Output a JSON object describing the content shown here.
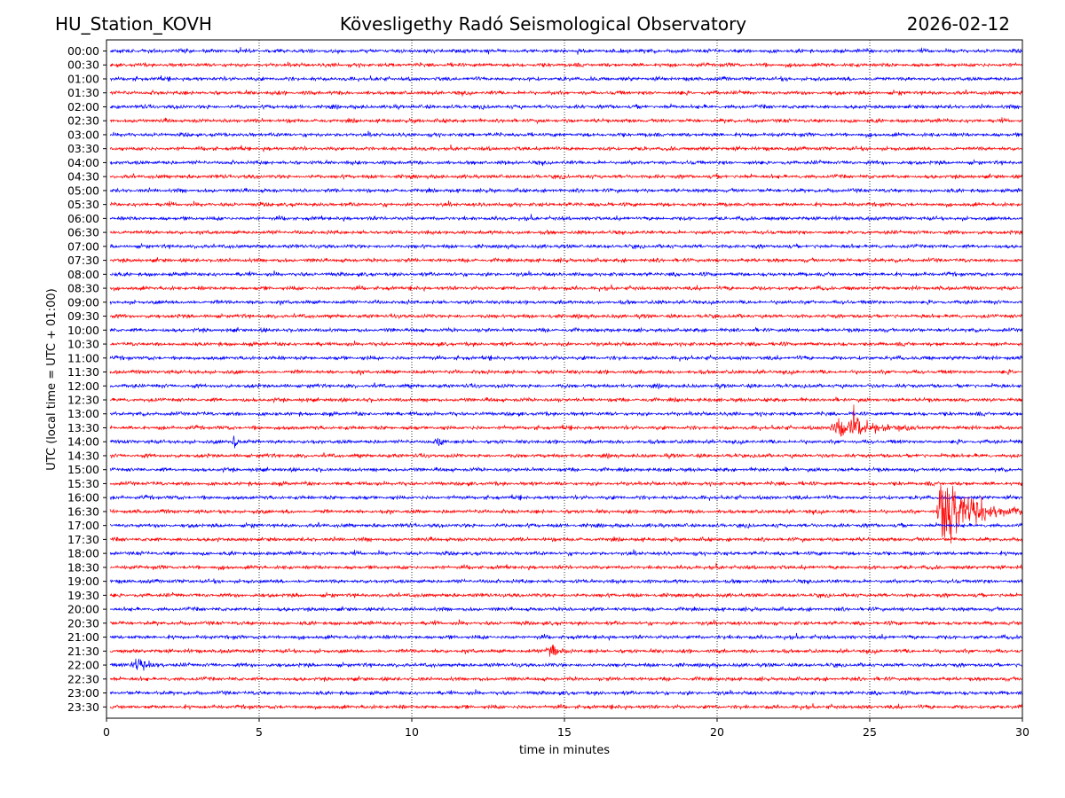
{
  "header": {
    "station": "HU_Station_KOVH",
    "observatory": "Kövesligethy Radó Seismological Observatory",
    "date": "2026-02-12"
  },
  "chart_data": {
    "type": "line",
    "subtype": "helicorder",
    "title": "Kövesligethy Radó Seismological Observatory",
    "xlabel": "time in minutes",
    "ylabel": "UTC (local time = UTC + 01:00)",
    "xlim": [
      0,
      30
    ],
    "x_ticks": [
      "0",
      "5",
      "10",
      "15",
      "20",
      "25",
      "30"
    ],
    "x_tick_values": [
      0,
      5,
      10,
      15,
      20,
      25,
      30
    ],
    "grid": "vertical dotted at x ticks",
    "trace_colors": [
      "#0000ff",
      "#ff0000"
    ],
    "y_tick_labels": [
      "00:00",
      "00:30",
      "01:00",
      "01:30",
      "02:00",
      "02:30",
      "03:00",
      "03:30",
      "04:00",
      "04:30",
      "05:00",
      "05:30",
      "06:00",
      "06:30",
      "07:00",
      "07:30",
      "08:00",
      "08:30",
      "09:00",
      "09:30",
      "10:00",
      "10:30",
      "11:00",
      "11:30",
      "12:00",
      "12:30",
      "13:00",
      "13:30",
      "14:00",
      "14:30",
      "15:00",
      "15:30",
      "16:00",
      "16:30",
      "17:00",
      "17:30",
      "18:00",
      "18:30",
      "19:00",
      "19:30",
      "20:00",
      "20:30",
      "21:00",
      "21:30",
      "22:00",
      "22:30",
      "23:00",
      "23:30"
    ],
    "background_noise_amplitude_traces": 0.12,
    "events": [
      {
        "trace": "13:30",
        "start_min": 23.7,
        "peak_min": 24.4,
        "end_min": 27.0,
        "amplitude_traces": 0.9
      },
      {
        "trace": "14:00",
        "start_min": 4.1,
        "peak_min": 4.2,
        "end_min": 4.7,
        "amplitude_traces": 0.55
      },
      {
        "trace": "14:00",
        "start_min": 10.8,
        "peak_min": 10.9,
        "end_min": 11.2,
        "amplitude_traces": 0.5
      },
      {
        "trace": "16:30",
        "start_min": 27.2,
        "peak_min": 27.4,
        "end_min": 30.0,
        "amplitude_traces": 3.5
      },
      {
        "trace": "21:30",
        "start_min": 14.4,
        "peak_min": 14.6,
        "end_min": 15.1,
        "amplitude_traces": 0.65
      },
      {
        "trace": "22:00",
        "start_min": 0.8,
        "peak_min": 1.0,
        "end_min": 2.2,
        "amplitude_traces": 0.7
      }
    ]
  }
}
